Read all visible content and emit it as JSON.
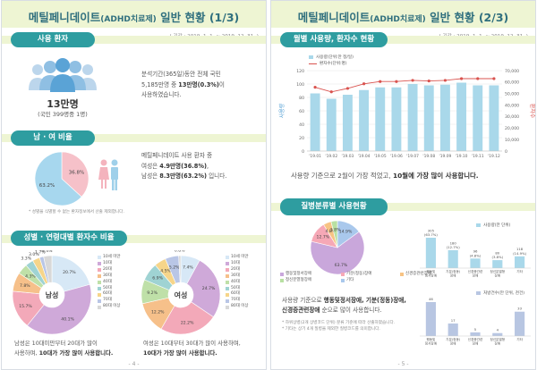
{
  "left": {
    "title": "메틸페니데이트",
    "title_small": "(ADHD치료제)",
    "title_rest": "일반 현황 (1/3)",
    "period": "( 기간 : 2019. 1. 1. ~ 2019. 12. 31. )",
    "section1": {
      "label": "사용 환자",
      "big": "13만명",
      "sub": "(국민 399명중 1명)",
      "text1": "분석기간(365일)동안 전체 국민",
      "text2a": "5,185만명 중 ",
      "text2b": "13만명(0.3%)",
      "text2c": "이",
      "text3": "사용하였습니다."
    },
    "section2": {
      "label": "남 · 여 비율",
      "female_pct": "36.8%",
      "male_pct": "63.2%",
      "female_value": 36.8,
      "male_value": 63.2,
      "note": "* 성별을 식별할 수 없는 환자정보에서 산출 제외합니다.",
      "text1": "메틸페니데이트 사용 환자 중",
      "text2a": "여성은 ",
      "text2b": "4.9만명(36.8%)",
      "text2c": ",",
      "text3a": "남성은 ",
      "text3b": "8.3만명(63.2%)",
      "text3c": " 입니다."
    },
    "section3": {
      "label": "성별 · 연령대별 환자수 비율",
      "male_center": "남성",
      "female_center": "여성",
      "legend": [
        "10세 미만",
        "10대",
        "20대",
        "30대",
        "40대",
        "50대",
        "60대",
        "70대",
        "80대 이상"
      ],
      "male_slices": [
        {
          "label": "20.7%",
          "value": 20.7
        },
        {
          "label": "40.1%",
          "value": 40.1
        },
        {
          "label": "15.7%",
          "value": 15.7
        },
        {
          "label": "7.8%",
          "value": 7.8
        },
        {
          "label": "4.3%",
          "value": 4.3
        },
        {
          "label": "3.3%",
          "value": 3.3
        },
        {
          "label": "3.0%",
          "value": 3.0
        },
        {
          "label": "1.7%",
          "value": 1.7
        },
        {
          "label": "3.4%",
          "value": 3.4
        }
      ],
      "female_slices": [
        {
          "label": "7.4%",
          "value": 7.4
        },
        {
          "label": "24.7%",
          "value": 24.7
        },
        {
          "label": "22.2%",
          "value": 22.2
        },
        {
          "label": "12.2%",
          "value": 12.2
        },
        {
          "label": "9.2%",
          "value": 9.2
        },
        {
          "label": "6.9%",
          "value": 6.9
        },
        {
          "label": "4.5%",
          "value": 4.5
        },
        {
          "label": "5.2%",
          "value": 5.2
        },
        {
          "label": "0.8%",
          "value": 0.8
        }
      ],
      "male_text1": "남성은 10대미만부터 20대가 많이",
      "male_text2a": "사용하며, ",
      "male_text2b": "10대가 가장 많이 사용합니다.",
      "female_text1": "여성은 10대부터 30대가 많이 사용하며,",
      "female_text2": "10대가 가장 많이 사용합니다."
    },
    "page_number": "- 4 -"
  },
  "right": {
    "title": "메틸페니데이트",
    "title_small": "(ADHD치료제)",
    "title_rest": "일반 현황 (2/3)",
    "period": "( 기간 : 2019. 1. 1. ~ 2019. 12. 31. )",
    "section1": {
      "label": "월별 사용량, 환자수 현황",
      "text1": "사용량 기준으로 2월이 가장 적었고, ",
      "text2": "10월에 가장 많이 사용합니다."
    },
    "section2": {
      "label": "질병분류별 사용현황",
      "pie_legend": [
        "행동및정서장애",
        "기분(정동)장애",
        "신경증관련장애",
        "정신분열형장애",
        "기타"
      ],
      "pie_slices": [
        {
          "label": "63.7%",
          "value": 63.7
        },
        {
          "label": "12.7%",
          "value": 12.7
        },
        {
          "label": "4.8%",
          "value": 4.8
        },
        {
          "label": "3.8%",
          "value": 3.8
        },
        {
          "label": "14.9%",
          "value": 14.9
        }
      ],
      "bar1_legend": "사용량(만 단위)",
      "bar1_labels": [
        "305\n(63.7%)",
        "180\n(12.7%)",
        "96\n(4.8%)",
        "80\n(3.8%)",
        "118\n(14.9%)"
      ],
      "bar1_values": [
        305,
        180,
        96,
        80,
        118
      ],
      "bar1_cats": [
        "행동및\n정서장애",
        "기분(정동)\n장애",
        "신경증관련\n장애",
        "정신분열형\n장애",
        "기타"
      ],
      "bar2_legend": "처방건수(만 단위, 천건)",
      "bar2_labels": [
        "46",
        "17",
        "5",
        "4",
        "33"
      ],
      "bar2_values": [
        46,
        17,
        5,
        4,
        33
      ],
      "bar2_cats": [
        "행동및\n정서장애",
        "기분(정동)\n장애",
        "신경증관련\n장애",
        "정신분열형\n장애",
        "기타"
      ],
      "text1a": "사용량 기준으로 ",
      "text1b": "행동및정서장애, 기분(정동)장애,",
      "text2a": "신경증관련장애",
      "text2b": " 순으로 많이 사용합니다.",
      "note1": "* 하위상병(2개 상병코드 단위) 분류 기준에 따라 산출하였습니다.",
      "note2": "* 기타는 상기 4개 질병을 제외한 질병코드를 의미합니다."
    },
    "page_number": "- 5 -"
  },
  "chart_data": {
    "type": "bar",
    "categories": [
      "'19.01",
      "'19.02",
      "'19.03",
      "'19.04",
      "'19.05",
      "'19.06",
      "'19.07",
      "'19.08",
      "'19.09",
      "'19.10",
      "'19.11",
      "'19.12"
    ],
    "series": [
      {
        "name": "사용량(단위:만 정/일)",
        "values": [
          86,
          78,
          84,
          91,
          95,
          95,
          100,
          98,
          99,
          102,
          98,
          98
        ]
      },
      {
        "name": "환자수(단위:명)",
        "values": [
          55500,
          51500,
          54500,
          58500,
          60500,
          60500,
          61500,
          61000,
          61500,
          63000,
          63000,
          63000
        ]
      }
    ],
    "ylabel": "사용량",
    "y2label": "환자수",
    "ylim": [
      0,
      120
    ],
    "y2lim": [
      0,
      70000
    ],
    "yticks": [
      "0",
      "20",
      "40",
      "60",
      "80",
      "100",
      "120"
    ],
    "y2ticks": [
      "0",
      "10,000",
      "20,000",
      "30,000",
      "40,000",
      "50,000",
      "60,000",
      "70,000"
    ],
    "colors": {
      "bar": "#a9d8ea",
      "line": "#d9534f"
    }
  }
}
